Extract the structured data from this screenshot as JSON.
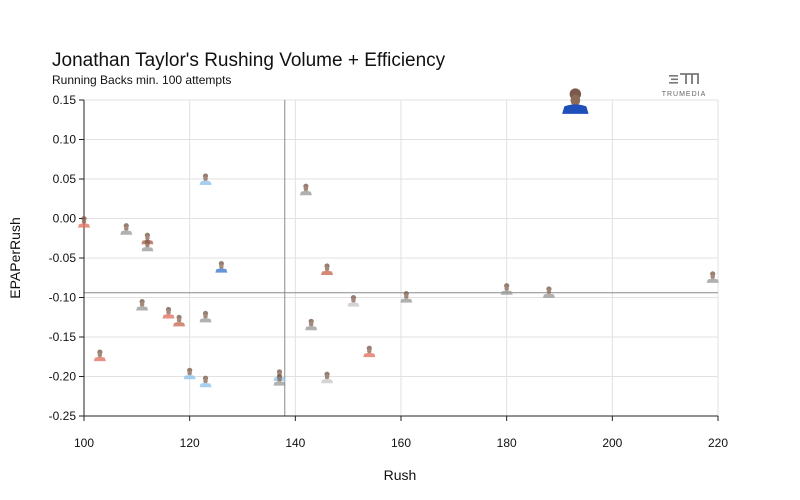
{
  "header": {
    "title": "Jonathan Taylor's Rushing Volume + Efficiency",
    "subtitle": "Running Backs min. 100 attempts",
    "brand": "TRUMEDIA"
  },
  "chart_data": {
    "type": "scatter",
    "xlabel": "Rush",
    "ylabel": "EPAPerRush",
    "xlim": [
      100,
      220
    ],
    "ylim": [
      -0.25,
      0.15
    ],
    "x_ticks": [
      100,
      120,
      140,
      160,
      180,
      200,
      220
    ],
    "y_ticks": [
      -0.25,
      -0.2,
      -0.15,
      -0.1,
      -0.05,
      0.0,
      0.05,
      0.1,
      0.15
    ],
    "x_tick_labels": [
      "100",
      "120",
      "140",
      "160",
      "180",
      "200",
      "220"
    ],
    "y_tick_labels": [
      "-0.25",
      "-0.20",
      "-0.15",
      "-0.10",
      "-0.05",
      "0.00",
      "0.05",
      "0.10",
      "0.15"
    ],
    "grid": true,
    "reference_lines": {
      "x": 138,
      "y": -0.094
    },
    "points": [
      {
        "x": 193,
        "y": 0.138,
        "color": "#1f4fb8",
        "highlight": true
      },
      {
        "x": 100,
        "y": -0.009,
        "color": "#e07060"
      },
      {
        "x": 108,
        "y": -0.018,
        "color": "#9a9a9a"
      },
      {
        "x": 112,
        "y": -0.03,
        "color": "#b06050"
      },
      {
        "x": 112,
        "y": -0.039,
        "color": "#9a9a9a"
      },
      {
        "x": 123,
        "y": 0.045,
        "color": "#8fc4ec"
      },
      {
        "x": 126,
        "y": -0.066,
        "color": "#3a78c9"
      },
      {
        "x": 142,
        "y": 0.032,
        "color": "#9a9a9a"
      },
      {
        "x": 146,
        "y": -0.069,
        "color": "#c86a50"
      },
      {
        "x": 111,
        "y": -0.114,
        "color": "#9a9a9a"
      },
      {
        "x": 116,
        "y": -0.124,
        "color": "#e07060"
      },
      {
        "x": 118,
        "y": -0.134,
        "color": "#c86a50"
      },
      {
        "x": 123,
        "y": -0.129,
        "color": "#9a9a9a"
      },
      {
        "x": 103,
        "y": -0.178,
        "color": "#e07060"
      },
      {
        "x": 120,
        "y": -0.201,
        "color": "#8fc4ec"
      },
      {
        "x": 123,
        "y": -0.211,
        "color": "#8fc4ec"
      },
      {
        "x": 137,
        "y": -0.203,
        "color": "#8fc4ec"
      },
      {
        "x": 137,
        "y": -0.209,
        "color": "#9a9a9a"
      },
      {
        "x": 143,
        "y": -0.139,
        "color": "#9a9a9a"
      },
      {
        "x": 146,
        "y": -0.206,
        "color": "#c8c8c8"
      },
      {
        "x": 151,
        "y": -0.109,
        "color": "#c8c8c8"
      },
      {
        "x": 154,
        "y": -0.173,
        "color": "#e07060"
      },
      {
        "x": 161,
        "y": -0.104,
        "color": "#9a9a9a"
      },
      {
        "x": 180,
        "y": -0.094,
        "color": "#9a9a9a"
      },
      {
        "x": 188,
        "y": -0.098,
        "color": "#9a9a9a"
      },
      {
        "x": 219,
        "y": -0.079,
        "color": "#9a9a9a"
      }
    ]
  }
}
